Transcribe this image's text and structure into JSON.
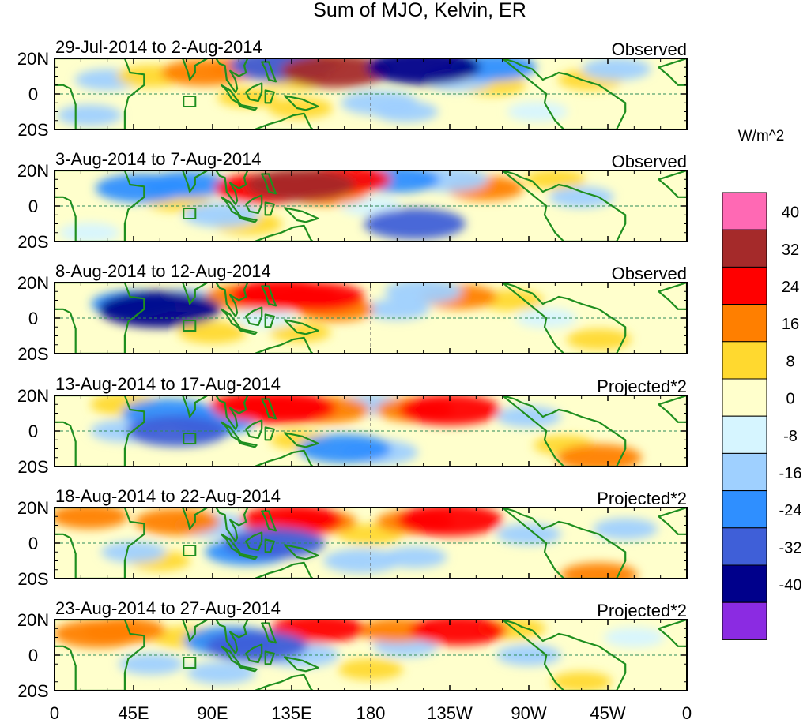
{
  "chart_data": {
    "type": "heatmap",
    "title": "Sum of MJO, Kelvin, ER",
    "units_label": "W/m^2",
    "x_tick_labels": [
      "0",
      "45E",
      "90E",
      "135E",
      "180",
      "135W",
      "90W",
      "45W",
      "0"
    ],
    "x_ticks_deg": [
      0,
      45,
      90,
      135,
      180,
      225,
      270,
      315,
      360
    ],
    "y_tick_labels": [
      "20N",
      "0",
      "20S"
    ],
    "y_ticks_deg": [
      20,
      0,
      -20
    ],
    "xlim": [
      0,
      360
    ],
    "ylim": [
      -20,
      20
    ],
    "colorbar": {
      "levels": [
        40,
        32,
        24,
        16,
        8,
        0,
        -8,
        -16,
        -24,
        -32,
        -40
      ],
      "colors": [
        "#ff69b4",
        "#a52a2a",
        "#ff0000",
        "#ff7f00",
        "#ffd92f",
        "#ffffcc",
        "#d6f5ff",
        "#9fd0ff",
        "#2f8fff",
        "#3f5fd8",
        "#00008b",
        "#8b2be2"
      ]
    },
    "panels": [
      {
        "date_range": "29-Jul-2014 to 2-Aug-2014",
        "status": "Observed",
        "features": [
          {
            "lon": 55,
            "lat": 10,
            "value": 12
          },
          {
            "lon": 85,
            "lat": 12,
            "value": 20
          },
          {
            "lon": 110,
            "lat": 15,
            "value": 16
          },
          {
            "lon": 160,
            "lat": 13,
            "value": 32
          },
          {
            "lon": 140,
            "lat": 18,
            "value": 20
          },
          {
            "lon": 137,
            "lat": 8,
            "value": 10
          },
          {
            "lon": 110,
            "lat": -2,
            "value": 8
          },
          {
            "lon": 140,
            "lat": -8,
            "value": 10
          },
          {
            "lon": 250,
            "lat": 5,
            "value": 10
          },
          {
            "lon": 305,
            "lat": 8,
            "value": 10
          },
          {
            "lon": 130,
            "lat": 16,
            "value": -30
          },
          {
            "lon": 210,
            "lat": 15,
            "value": -34
          },
          {
            "lon": 250,
            "lat": 15,
            "value": -20
          },
          {
            "lon": 230,
            "lat": 8,
            "value": -12
          },
          {
            "lon": 30,
            "lat": 8,
            "value": -10
          },
          {
            "lon": 185,
            "lat": -5,
            "value": -16
          },
          {
            "lon": 200,
            "lat": -10,
            "value": -10
          },
          {
            "lon": 20,
            "lat": -12,
            "value": -10
          },
          {
            "lon": 320,
            "lat": 14,
            "value": -12
          },
          {
            "lon": 275,
            "lat": -10,
            "value": -8
          }
        ]
      },
      {
        "date_range": "3-Aug-2014 to 7-Aug-2014",
        "status": "Observed",
        "features": [
          {
            "lon": 120,
            "lat": 10,
            "value": 28
          },
          {
            "lon": 140,
            "lat": 12,
            "value": 32
          },
          {
            "lon": 155,
            "lat": 8,
            "value": 20
          },
          {
            "lon": 165,
            "lat": 15,
            "value": 24
          },
          {
            "lon": 110,
            "lat": -10,
            "value": 12
          },
          {
            "lon": 70,
            "lat": 3,
            "value": 10
          },
          {
            "lon": 245,
            "lat": 10,
            "value": 16
          },
          {
            "lon": 285,
            "lat": 15,
            "value": 8
          },
          {
            "lon": 50,
            "lat": 10,
            "value": -24
          },
          {
            "lon": 75,
            "lat": 12,
            "value": -20
          },
          {
            "lon": 95,
            "lat": -5,
            "value": -16
          },
          {
            "lon": 205,
            "lat": -10,
            "value": -28
          },
          {
            "lon": 195,
            "lat": 15,
            "value": -20
          },
          {
            "lon": 225,
            "lat": 15,
            "value": -16
          },
          {
            "lon": 300,
            "lat": 5,
            "value": -10
          },
          {
            "lon": 180,
            "lat": 0,
            "value": -8
          },
          {
            "lon": 20,
            "lat": -15,
            "value": -8
          }
        ]
      },
      {
        "date_range": "8-Aug-2014 to 12-Aug-2014",
        "status": "Observed",
        "features": [
          {
            "lon": 60,
            "lat": 5,
            "value": -38
          },
          {
            "lon": 45,
            "lat": 8,
            "value": -20
          },
          {
            "lon": 75,
            "lat": 10,
            "value": -14
          },
          {
            "lon": 130,
            "lat": 13,
            "value": 30
          },
          {
            "lon": 150,
            "lat": 12,
            "value": 24
          },
          {
            "lon": 110,
            "lat": 12,
            "value": 20
          },
          {
            "lon": 160,
            "lat": 5,
            "value": 16
          },
          {
            "lon": 230,
            "lat": 12,
            "value": 16
          },
          {
            "lon": 260,
            "lat": 10,
            "value": 10
          },
          {
            "lon": 90,
            "lat": -8,
            "value": 12
          },
          {
            "lon": 310,
            "lat": -12,
            "value": 10
          },
          {
            "lon": 140,
            "lat": -8,
            "value": 8
          },
          {
            "lon": 195,
            "lat": 5,
            "value": -10
          },
          {
            "lon": 210,
            "lat": 15,
            "value": -16
          },
          {
            "lon": 280,
            "lat": 0,
            "value": -8
          },
          {
            "lon": 120,
            "lat": 0,
            "value": -8
          }
        ]
      },
      {
        "date_range": "13-Aug-2014 to 17-Aug-2014",
        "status": "Projected*2",
        "features": [
          {
            "lon": 130,
            "lat": 13,
            "value": 30
          },
          {
            "lon": 115,
            "lat": 14,
            "value": 24
          },
          {
            "lon": 155,
            "lat": 12,
            "value": 20
          },
          {
            "lon": 225,
            "lat": 12,
            "value": 28
          },
          {
            "lon": 205,
            "lat": 12,
            "value": 16
          },
          {
            "lon": 40,
            "lat": 15,
            "value": 12
          },
          {
            "lon": 310,
            "lat": -15,
            "value": 20
          },
          {
            "lon": 290,
            "lat": -8,
            "value": 8
          },
          {
            "lon": 140,
            "lat": -5,
            "value": 8
          },
          {
            "lon": 65,
            "lat": 10,
            "value": -24
          },
          {
            "lon": 70,
            "lat": 0,
            "value": -28
          },
          {
            "lon": 90,
            "lat": 5,
            "value": -20
          },
          {
            "lon": 40,
            "lat": 0,
            "value": -12
          },
          {
            "lon": 165,
            "lat": -10,
            "value": -24
          },
          {
            "lon": 185,
            "lat": -12,
            "value": -16
          },
          {
            "lon": 180,
            "lat": 15,
            "value": -10
          },
          {
            "lon": 270,
            "lat": 8,
            "value": -10
          }
        ]
      },
      {
        "date_range": "18-Aug-2014 to 22-Aug-2014",
        "status": "Projected*2",
        "features": [
          {
            "lon": 135,
            "lat": 13,
            "value": 28
          },
          {
            "lon": 150,
            "lat": 12,
            "value": 16
          },
          {
            "lon": 225,
            "lat": 13,
            "value": 30
          },
          {
            "lon": 205,
            "lat": 12,
            "value": 16
          },
          {
            "lon": 70,
            "lat": 12,
            "value": 20
          },
          {
            "lon": 20,
            "lat": 15,
            "value": 16
          },
          {
            "lon": 310,
            "lat": -18,
            "value": 16
          },
          {
            "lon": 180,
            "lat": 5,
            "value": 10
          },
          {
            "lon": 60,
            "lat": -10,
            "value": 8
          },
          {
            "lon": 125,
            "lat": 0,
            "value": -28
          },
          {
            "lon": 110,
            "lat": -5,
            "value": -20
          },
          {
            "lon": 90,
            "lat": 10,
            "value": -16
          },
          {
            "lon": 45,
            "lat": -5,
            "value": -10
          },
          {
            "lon": 175,
            "lat": -10,
            "value": -16
          },
          {
            "lon": 205,
            "lat": -8,
            "value": -10
          },
          {
            "lon": 270,
            "lat": 5,
            "value": -10
          },
          {
            "lon": 325,
            "lat": 8,
            "value": -10
          }
        ]
      },
      {
        "date_range": "23-Aug-2014 to 27-Aug-2014",
        "status": "Projected*2",
        "features": [
          {
            "lon": 25,
            "lat": 12,
            "value": 22
          },
          {
            "lon": 40,
            "lat": 14,
            "value": 18
          },
          {
            "lon": 150,
            "lat": 15,
            "value": 24
          },
          {
            "lon": 230,
            "lat": 14,
            "value": 26
          },
          {
            "lon": 195,
            "lat": 14,
            "value": 16
          },
          {
            "lon": 260,
            "lat": 15,
            "value": 12
          },
          {
            "lon": 75,
            "lat": 10,
            "value": 12
          },
          {
            "lon": 180,
            "lat": -8,
            "value": 10
          },
          {
            "lon": 300,
            "lat": -15,
            "value": 8
          },
          {
            "lon": 115,
            "lat": 5,
            "value": -28
          },
          {
            "lon": 100,
            "lat": 8,
            "value": -24
          },
          {
            "lon": 140,
            "lat": 0,
            "value": -16
          },
          {
            "lon": 95,
            "lat": -10,
            "value": -12
          },
          {
            "lon": 55,
            "lat": -5,
            "value": -10
          },
          {
            "lon": 200,
            "lat": 5,
            "value": -10
          },
          {
            "lon": 270,
            "lat": 0,
            "value": -10
          },
          {
            "lon": 330,
            "lat": 10,
            "value": -8
          }
        ]
      }
    ]
  }
}
